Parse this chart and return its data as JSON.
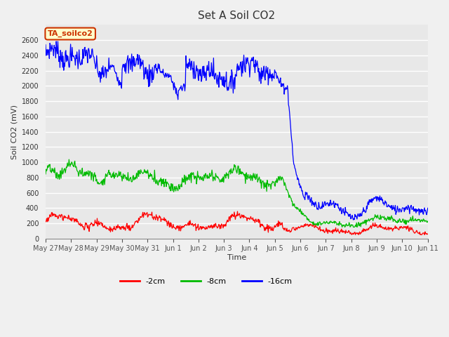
{
  "title": "Set A Soil CO2",
  "ylabel": "Soil CO2 (mV)",
  "xlabel": "Time",
  "ylim": [
    0,
    2800
  ],
  "yticks": [
    0,
    200,
    400,
    600,
    800,
    1000,
    1200,
    1400,
    1600,
    1800,
    2000,
    2200,
    2400,
    2600
  ],
  "xtick_labels": [
    "May 27",
    "May 28",
    "May 29",
    "May 30",
    "May 31",
    "Jun 1",
    "Jun 2",
    "Jun 3",
    "Jun 4",
    "Jun 5",
    "Jun 6",
    "Jun 7",
    "Jun 8",
    "Jun 9",
    "Jun 10",
    "Jun 11"
  ],
  "legend_label": "TA_soilco2",
  "line_labels": [
    "-2cm",
    "-8cm",
    "-16cm"
  ],
  "line_colors": [
    "#ff0000",
    "#00bb00",
    "#0000ff"
  ],
  "bg_color": "#e8e8e8",
  "fig_bg": "#f0f0f0",
  "title_fontsize": 11,
  "axis_label_fontsize": 8,
  "tick_fontsize": 7,
  "legend_box_facecolor": "#ffffcc",
  "legend_box_edgecolor": "#cc3300"
}
